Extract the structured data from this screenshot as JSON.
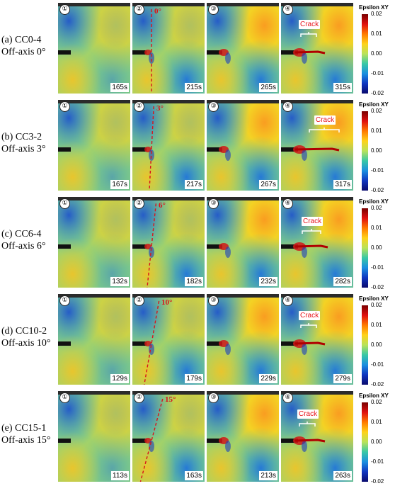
{
  "rows": [
    {
      "label_line1": "(a) CC0-4",
      "label_line2": "Off-axis 0°",
      "angle": "0°",
      "crack": "Crack",
      "panels": [
        {
          "num": "①",
          "time": "165s"
        },
        {
          "num": "②",
          "time": "215s"
        },
        {
          "num": "③",
          "time": "265s"
        },
        {
          "num": "④",
          "time": "315s"
        }
      ]
    },
    {
      "label_line1": "(b) CC3-2",
      "label_line2": "Off-axis 3°",
      "angle": "3°",
      "crack": "Crack",
      "panels": [
        {
          "num": "①",
          "time": "167s"
        },
        {
          "num": "②",
          "time": "217s"
        },
        {
          "num": "③",
          "time": "267s"
        },
        {
          "num": "④",
          "time": "317s"
        }
      ]
    },
    {
      "label_line1": "(c) CC6-4",
      "label_line2": "Off-axis 6°",
      "angle": "6°",
      "crack": "Crack",
      "panels": [
        {
          "num": "①",
          "time": "132s"
        },
        {
          "num": "②",
          "time": "182s"
        },
        {
          "num": "③",
          "time": "232s"
        },
        {
          "num": "④",
          "time": "282s"
        }
      ]
    },
    {
      "label_line1": "(d) CC10-2",
      "label_line2": "Off-axis 10°",
      "angle": "10°",
      "crack": "Crack",
      "panels": [
        {
          "num": "①",
          "time": "129s"
        },
        {
          "num": "②",
          "time": "179s"
        },
        {
          "num": "③",
          "time": "229s"
        },
        {
          "num": "④",
          "time": "279s"
        }
      ]
    },
    {
      "label_line1": "(e) CC15-1",
      "label_line2": "Off-axis 15°",
      "angle": "15°",
      "crack": "Crack",
      "panels": [
        {
          "num": "①",
          "time": "113s"
        },
        {
          "num": "②",
          "time": "163s"
        },
        {
          "num": "③",
          "time": "213s"
        },
        {
          "num": "④",
          "time": "263s"
        }
      ]
    }
  ],
  "colorbar": {
    "title": "Epsilon XY",
    "ticks": [
      "0.02",
      "0.01",
      "0.00",
      "-0.01",
      "-0.02"
    ]
  },
  "colors": {
    "annotation": "#d8141c",
    "crack_text": "#e8141c"
  }
}
